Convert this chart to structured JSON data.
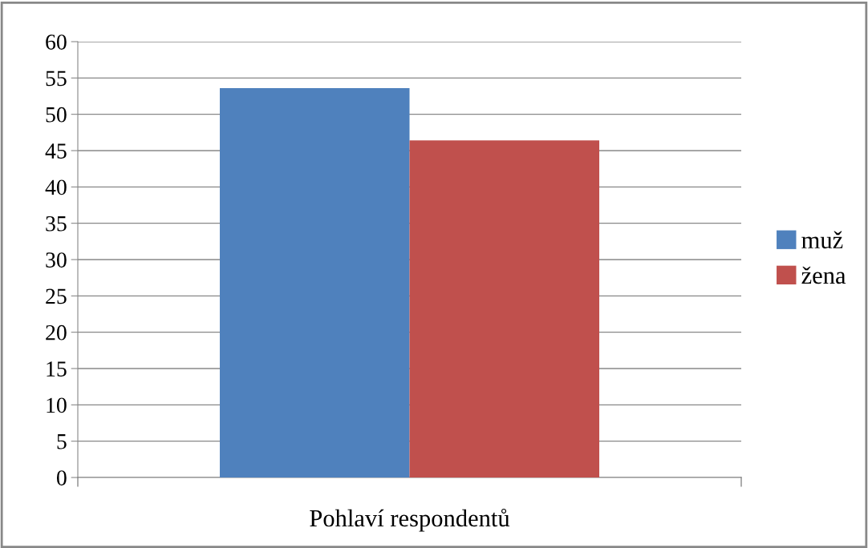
{
  "chart_data": {
    "type": "bar",
    "categories": [
      "Pohlaví respondentů"
    ],
    "series": [
      {
        "name": "muž",
        "color": "#4f81bd",
        "values": [
          53.6
        ]
      },
      {
        "name": "žena",
        "color": "#c0504d",
        "values": [
          46.4
        ]
      }
    ],
    "ylim": [
      0,
      60
    ],
    "yticks": [
      0,
      5,
      10,
      15,
      20,
      25,
      30,
      35,
      40,
      45,
      50,
      55,
      60
    ],
    "grid": "y",
    "legend": "right"
  }
}
